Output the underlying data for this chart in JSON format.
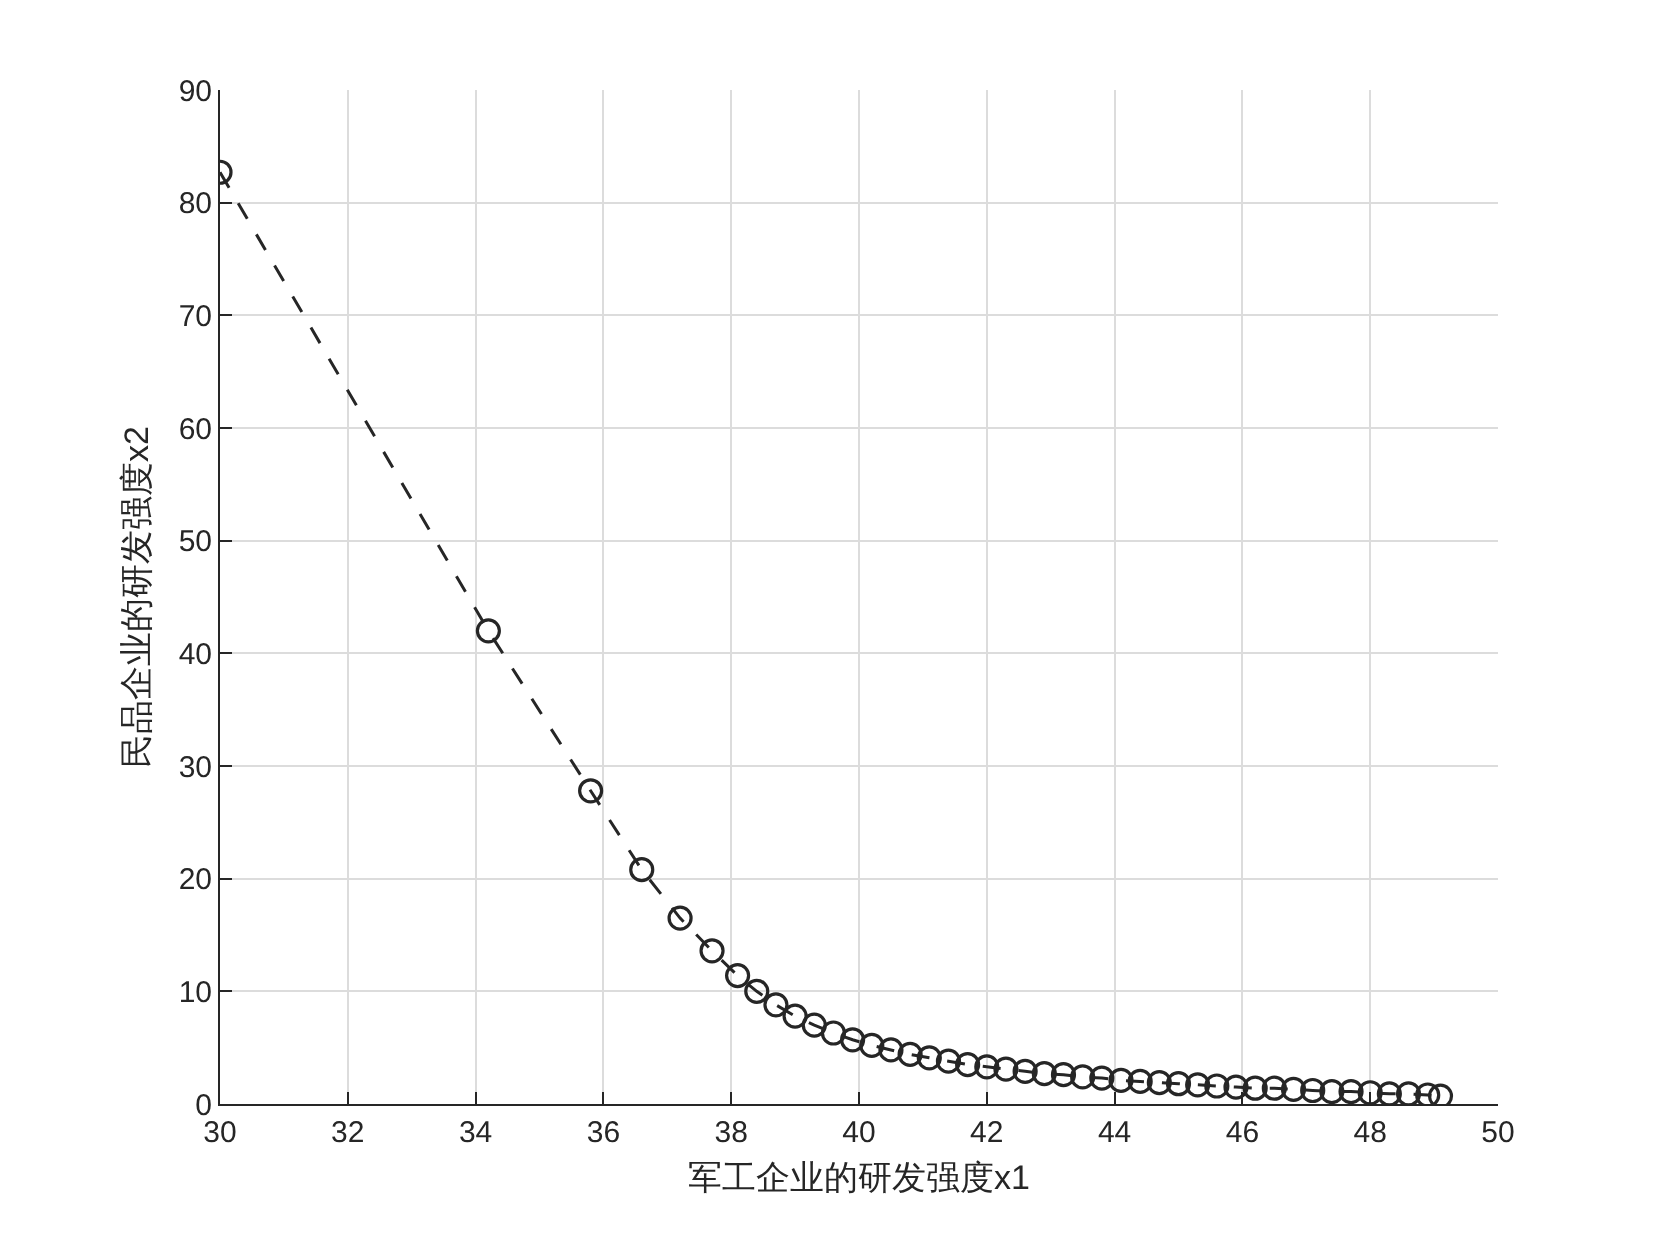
{
  "chart_data": {
    "type": "line",
    "xlabel": "军工企业的研发强度x1",
    "ylabel": "民品企业的研发强度x2",
    "x": [
      30,
      34.2,
      35.8,
      36.6,
      37.2,
      37.7,
      38.1,
      38.4,
      38.7,
      39.0,
      39.3,
      39.6,
      39.9,
      40.2,
      40.5,
      40.8,
      41.1,
      41.4,
      41.7,
      42.0,
      42.3,
      42.6,
      42.9,
      43.2,
      43.5,
      43.8,
      44.1,
      44.4,
      44.7,
      45.0,
      45.3,
      45.6,
      45.9,
      46.2,
      46.5,
      46.8,
      47.1,
      47.4,
      47.7,
      48.0,
      48.3,
      48.6,
      48.9,
      49.1
    ],
    "series": [
      {
        "color": "#262626",
        "values": [
          82.7,
          42,
          27.8,
          20.8,
          16.5,
          13.6,
          11.4,
          10.0,
          8.8,
          7.8,
          7.0,
          6.3,
          5.7,
          5.2,
          4.8,
          4.4,
          4.1,
          3.8,
          3.5,
          3.3,
          3.1,
          2.9,
          2.7,
          2.6,
          2.4,
          2.3,
          2.1,
          2.0,
          1.9,
          1.8,
          1.7,
          1.6,
          1.5,
          1.4,
          1.4,
          1.3,
          1.2,
          1.1,
          1.1,
          1.0,
          0.9,
          0.9,
          0.8,
          0.7
        ]
      }
    ],
    "xlim": [
      30,
      50
    ],
    "xticks": [
      30,
      32,
      34,
      36,
      38,
      40,
      42,
      44,
      46,
      48,
      50
    ],
    "ylim": [
      0,
      90
    ],
    "yticks": [
      0,
      10,
      20,
      30,
      40,
      50,
      60,
      70,
      80,
      90
    ],
    "grid": true,
    "marker": "circle",
    "line_style": "dashed"
  }
}
